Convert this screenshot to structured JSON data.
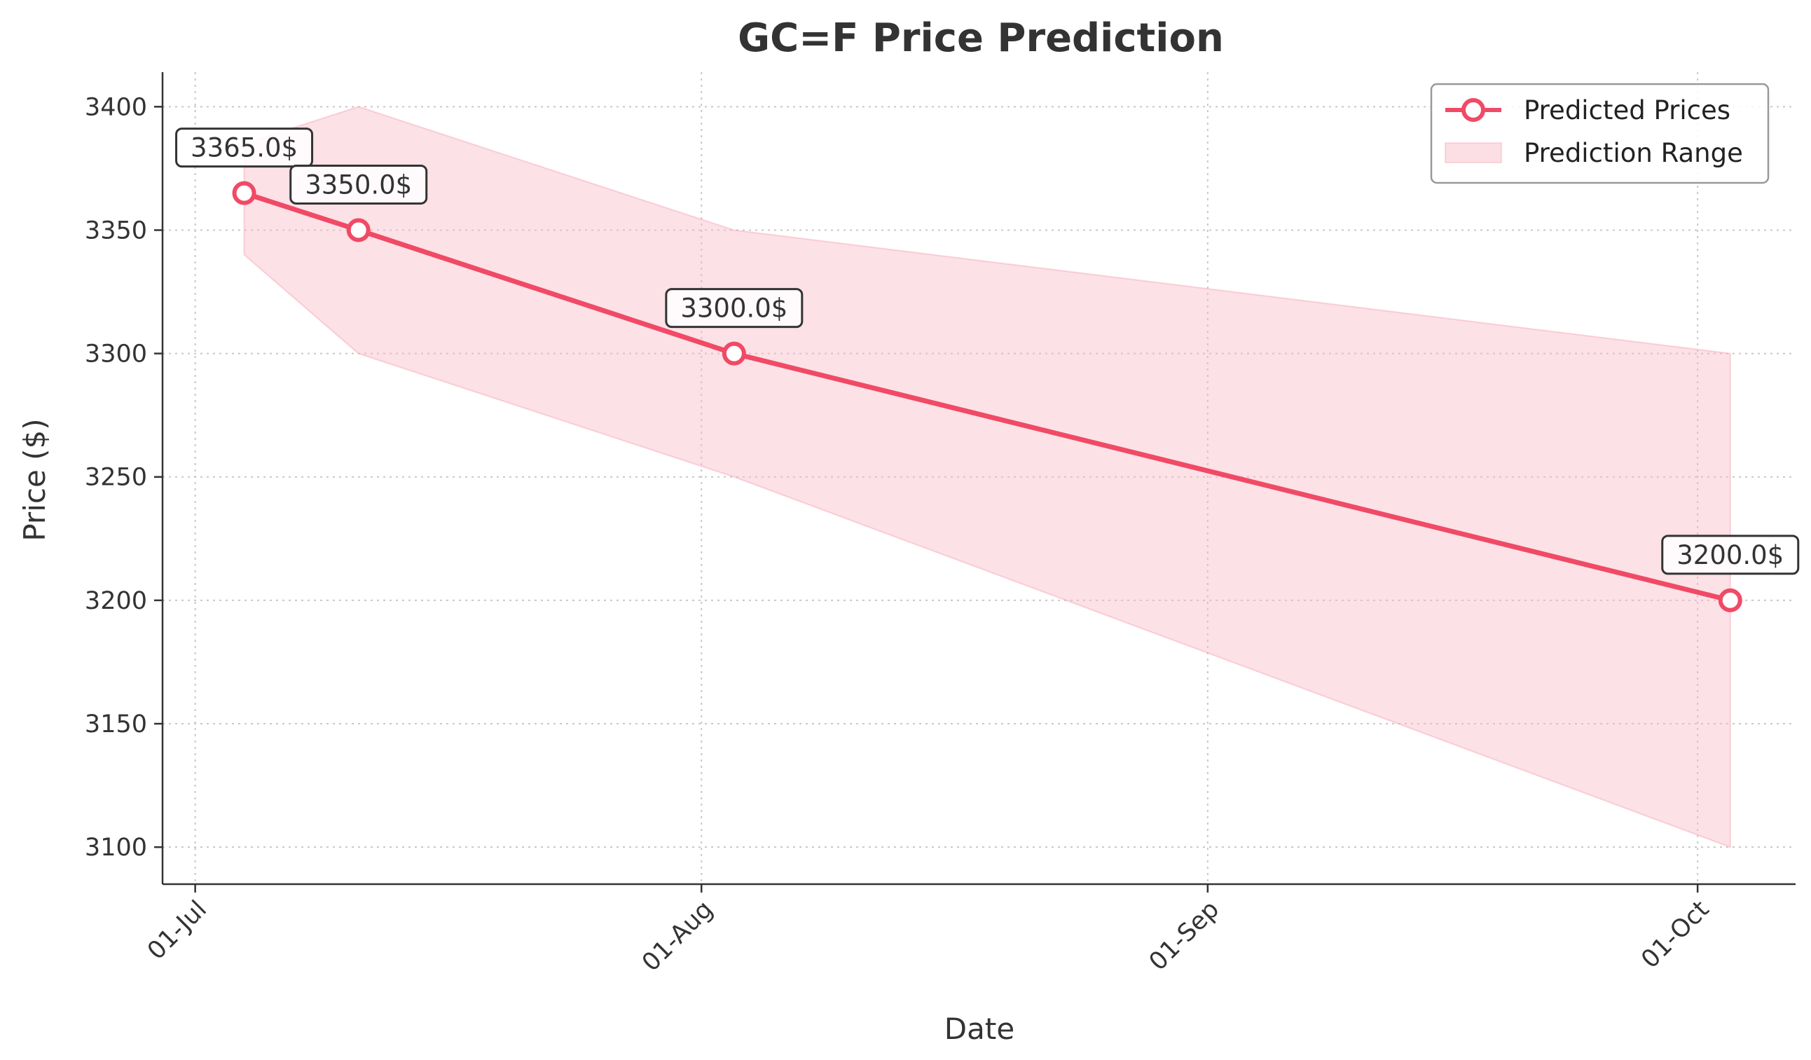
{
  "chart_data": {
    "type": "line",
    "title": "GC=F Price Prediction",
    "xlabel": "Date",
    "ylabel": "Price ($)",
    "x_ticks": [
      "01-Jul",
      "01-Aug",
      "01-Sep",
      "01-Oct"
    ],
    "y_ticks": [
      3100,
      3150,
      3200,
      3250,
      3300,
      3350,
      3400
    ],
    "ylim": [
      3085,
      3414
    ],
    "xlim": [
      "2025-06-29",
      "2025-10-07"
    ],
    "grid": true,
    "legend_position": "top-right",
    "series": [
      {
        "name": "Predicted Prices",
        "color": "#f04a66",
        "x": [
          "2025-07-04",
          "2025-07-11",
          "2025-08-03",
          "2025-10-03"
        ],
        "values": [
          3365.0,
          3350.0,
          3300.0,
          3200.0
        ]
      }
    ],
    "range": {
      "name": "Prediction Range",
      "color": "#f9b7c3",
      "x": [
        "2025-07-04",
        "2025-07-11",
        "2025-08-03",
        "2025-10-03"
      ],
      "upper": [
        3385,
        3400,
        3350,
        3300
      ],
      "lower": [
        3340,
        3300,
        3250,
        3100
      ]
    },
    "annotations": [
      {
        "text": "3365.0$",
        "x": "2025-07-04",
        "y": 3365.0
      },
      {
        "text": "3350.0$",
        "x": "2025-07-11",
        "y": 3350.0
      },
      {
        "text": "3300.0$",
        "x": "2025-08-03",
        "y": 3300.0
      },
      {
        "text": "3200.0$",
        "x": "2025-10-03",
        "y": 3200.0
      }
    ]
  }
}
